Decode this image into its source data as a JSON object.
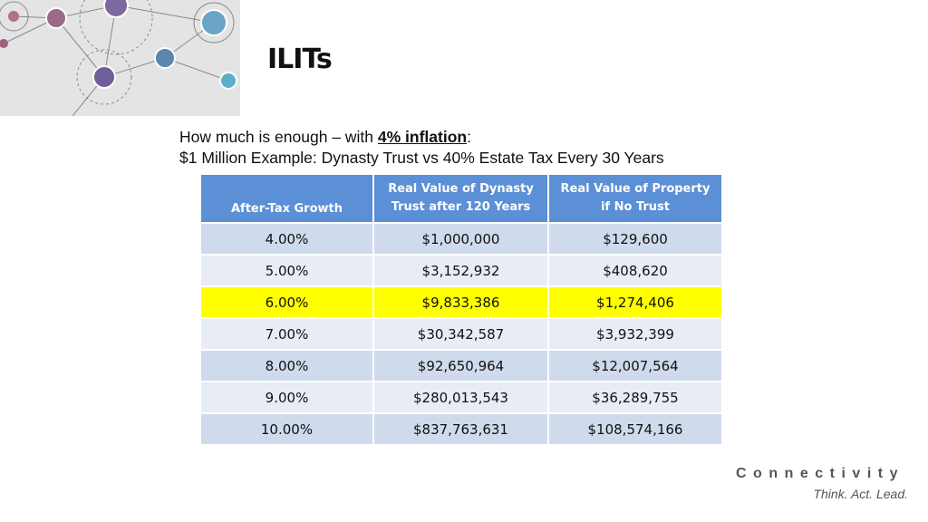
{
  "header": {
    "title": "ILITs"
  },
  "intro": {
    "line1": {
      "text": "How much is enough – with ",
      "emphasis": "4% inflation",
      "suffix": ":"
    },
    "line2": "$1 Million Example: Dynasty Trust vs 40% Estate Tax Every 30 Years"
  },
  "table": {
    "columns": [
      "After-Tax Growth",
      "Real Value of Dynasty Trust after 120 Years",
      "Real Value of Property if No Trust"
    ],
    "rows": [
      [
        "4.00%",
        "$1,000,000",
        "$129,600"
      ],
      [
        "5.00%",
        "$3,152,932",
        "$408,620"
      ],
      [
        "6.00%",
        "$9,833,386",
        "$1,274,406"
      ],
      [
        "7.00%",
        "$30,342,587",
        "$3,932,399"
      ],
      [
        "8.00%",
        "$92,650,964",
        "$12,007,564"
      ],
      [
        "9.00%",
        "$280,013,543",
        "$36,289,755"
      ],
      [
        "10.00%",
        "$837,763,631",
        "$108,574,166"
      ]
    ],
    "highlight_row": 2,
    "highlight_color": "#ffff00"
  },
  "footer": {
    "brand": "Connectivity",
    "tagline": "Think. Act. Lead."
  }
}
